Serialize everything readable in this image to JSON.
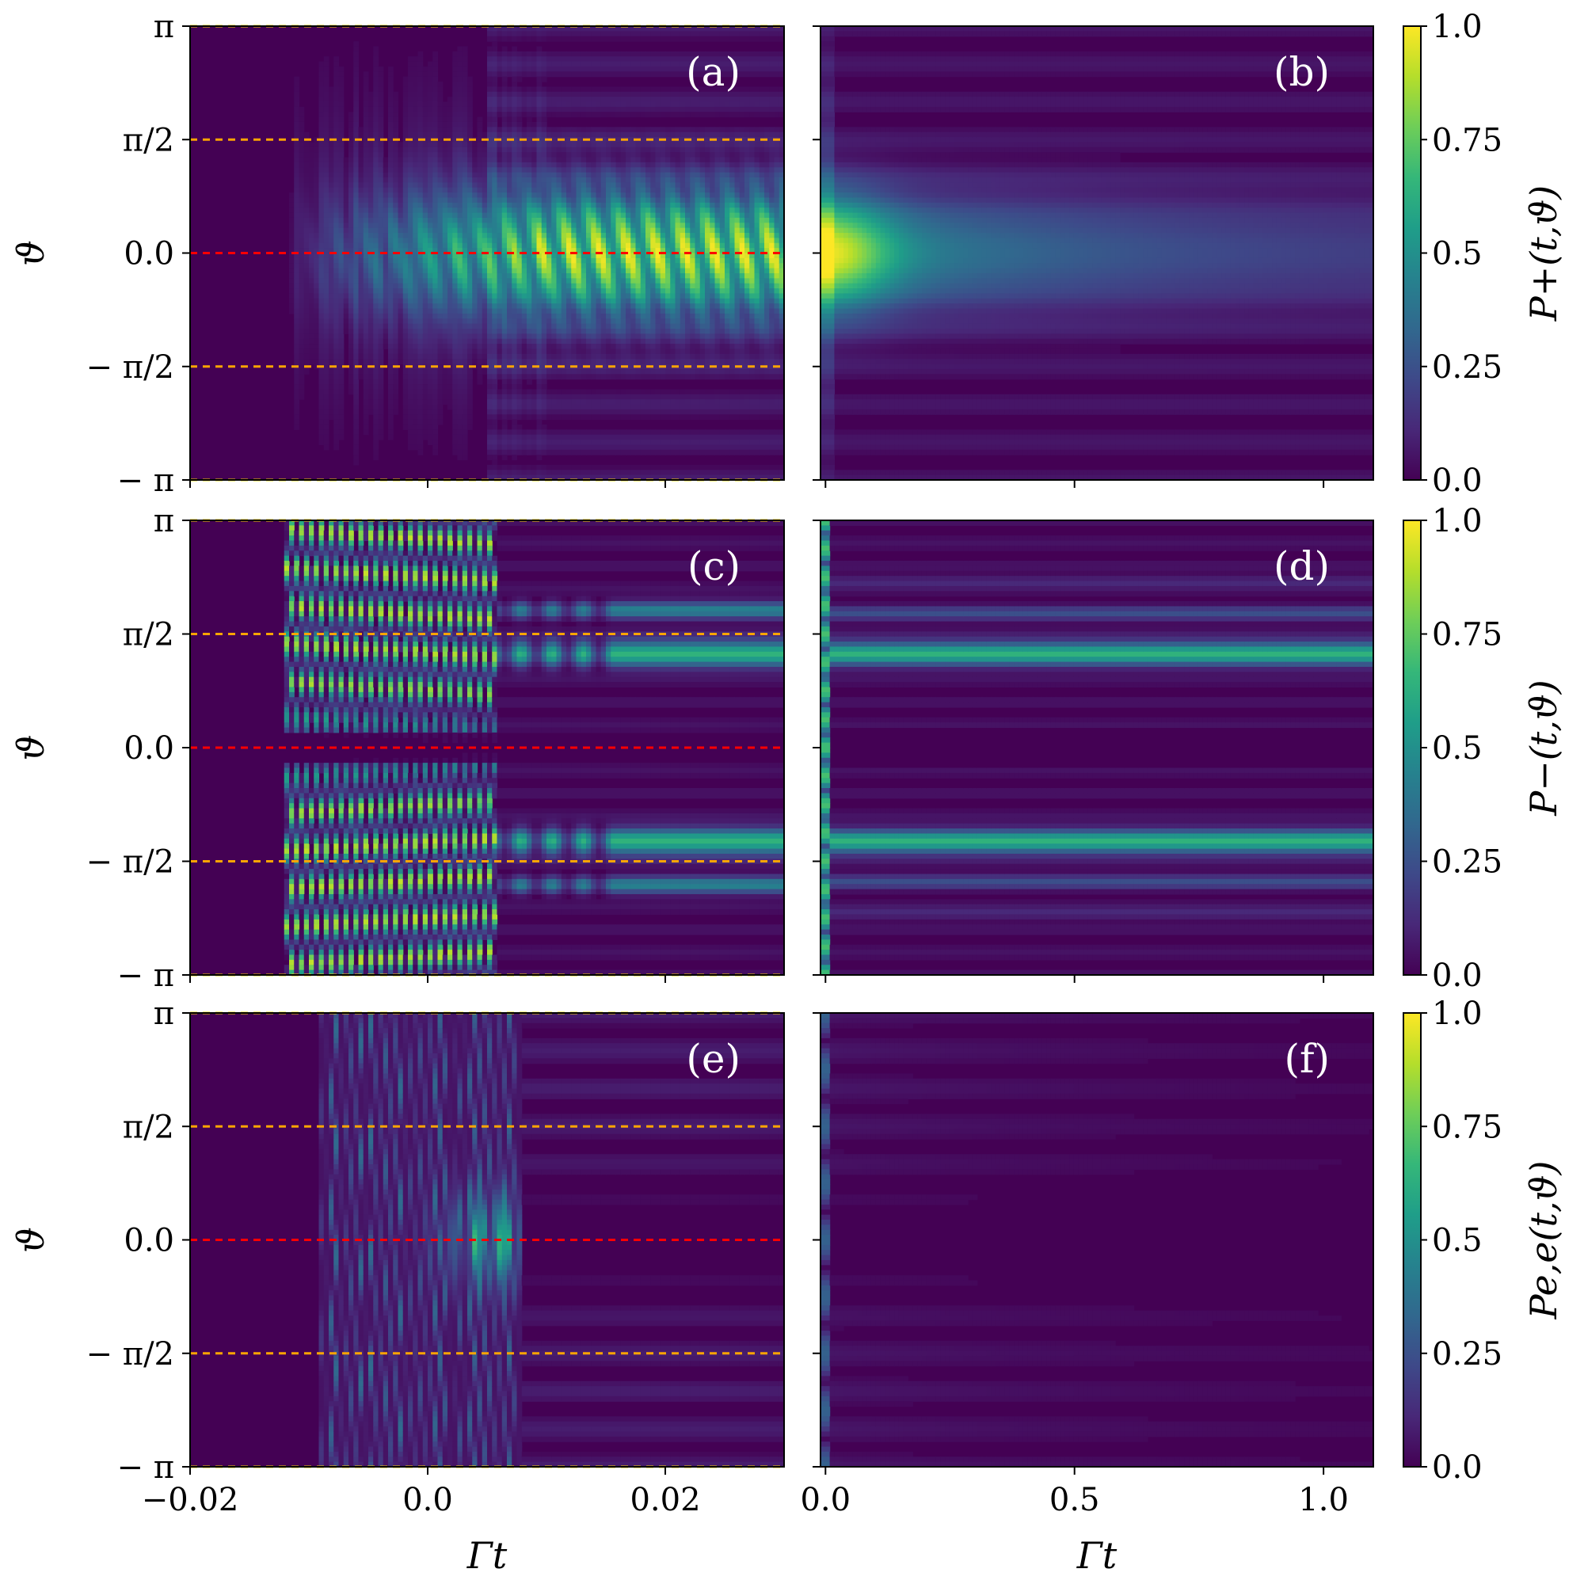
{
  "chart_data": {
    "type": "heatmap",
    "colormap": "viridis",
    "colormap_stops": [
      "#440154",
      "#482878",
      "#3e4989",
      "#31688e",
      "#26828e",
      "#1f9e89",
      "#35b779",
      "#6ece58",
      "#b5de2b",
      "#fde725"
    ],
    "left_column": {
      "xlabel": "Γt",
      "xlim": [
        -0.02,
        0.03
      ],
      "xticks": [
        -0.02,
        0.0,
        0.02
      ],
      "xtick_labels": [
        "−0.02",
        "0.0",
        "0.02"
      ]
    },
    "right_column": {
      "xlabel": "Γt",
      "xlim": [
        -0.01,
        1.1
      ],
      "xticks": [
        0.0,
        0.5,
        1.0
      ],
      "xtick_labels": [
        "0.0",
        "0.5",
        "1.0"
      ]
    },
    "ylabel": "ϑ",
    "ylim": [
      -3.1416,
      3.1416
    ],
    "yticks": [
      -3.1416,
      -1.5708,
      0.0,
      1.5708,
      3.1416
    ],
    "ytick_labels": [
      "− π",
      "− π/2",
      "0.0",
      "π/2",
      "π"
    ],
    "reference_lines": [
      {
        "y": 3.1416,
        "color": "#ffd700"
      },
      {
        "y": 1.5708,
        "color": "#ffa500"
      },
      {
        "y": 0.0,
        "color": "#ff0000"
      },
      {
        "y": -1.5708,
        "color": "#ffa500"
      },
      {
        "y": -3.1416,
        "color": "#ffd700"
      }
    ],
    "rows": [
      {
        "colorbar_label": "P+(t,ϑ)",
        "colorbar_range": [
          0.0,
          1.0
        ],
        "colorbar_ticks": [
          "0.0",
          "0.25",
          "0.5",
          "0.75",
          "1.0"
        ],
        "panels": [
          {
            "label": "(a)",
            "pattern": "plus_short"
          },
          {
            "label": "(b)",
            "pattern": "plus_long"
          }
        ]
      },
      {
        "colorbar_label": "P−(t,ϑ)",
        "colorbar_range": [
          0.0,
          1.0
        ],
        "colorbar_ticks": [
          "0.0",
          "0.25",
          "0.5",
          "0.75",
          "1.0"
        ],
        "panels": [
          {
            "label": "(c)",
            "pattern": "minus_short"
          },
          {
            "label": "(d)",
            "pattern": "minus_long"
          }
        ]
      },
      {
        "colorbar_label": "Pe,e(t,ϑ)",
        "colorbar_range": [
          0.0,
          1.0
        ],
        "colorbar_ticks": [
          "0.0",
          "0.25",
          "0.5",
          "0.75",
          "1.0"
        ],
        "panels": [
          {
            "label": "(e)",
            "pattern": "ee_short"
          },
          {
            "label": "(f)",
            "pattern": "ee_long"
          }
        ]
      }
    ]
  }
}
